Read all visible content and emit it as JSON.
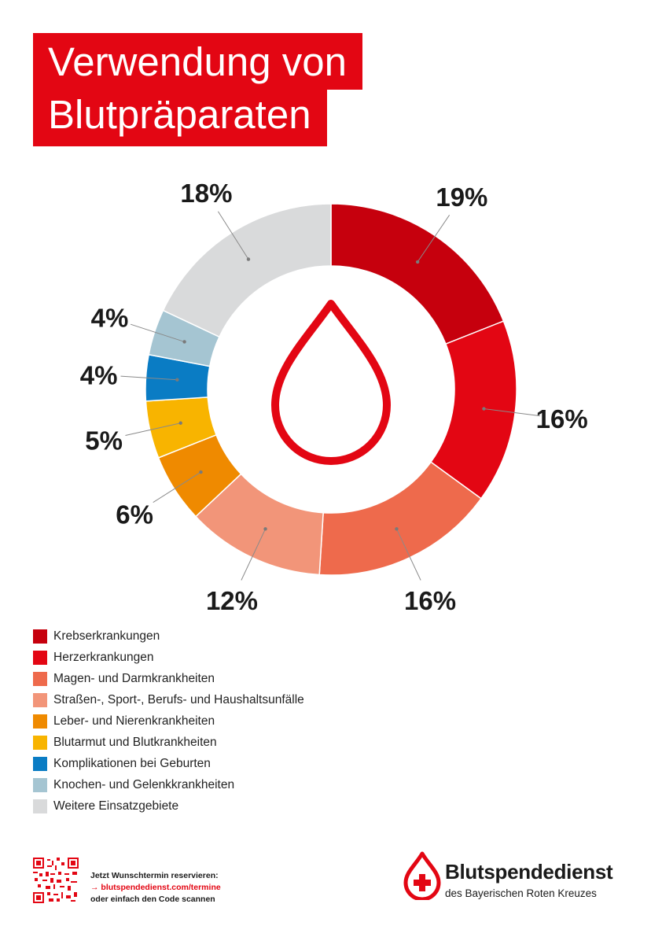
{
  "title": {
    "line1": "Verwendung von",
    "line2": "Blutpräparaten"
  },
  "colors": {
    "brand_red": "#e30613"
  },
  "chart_data": {
    "type": "pie",
    "variant": "donut",
    "center_icon": "blood-drop-icon",
    "slices": [
      {
        "label": "Krebserkrankungen",
        "value": 19,
        "display": "19%",
        "color": "#c6000d"
      },
      {
        "label": "Herzerkrankungen",
        "value": 16,
        "display": "16%",
        "color": "#e30613"
      },
      {
        "label": "Magen- und Darmkrankheiten",
        "value": 16,
        "display": "16%",
        "color": "#ee6a4c"
      },
      {
        "label": "Straßen-, Sport-, Berufs- und Haushaltsunfälle",
        "value": 12,
        "display": "12%",
        "color": "#f29579"
      },
      {
        "label": "Leber- und Nierenkrankheiten",
        "value": 6,
        "display": "6%",
        "color": "#ef8a00"
      },
      {
        "label": "Blutarmut und Blutkrankheiten",
        "value": 5,
        "display": "5%",
        "color": "#f8b400"
      },
      {
        "label": "Komplikationen bei Geburten",
        "value": 4,
        "display": "4%",
        "color": "#0a7cc4"
      },
      {
        "label": "Knochen- und Gelenkkrankheiten",
        "value": 4,
        "display": "4%",
        "color": "#a5c5d2"
      },
      {
        "label": "Weitere Einsatzgebiete",
        "value": 18,
        "display": "18%",
        "color": "#d9dadb"
      }
    ]
  },
  "footer": {
    "line1": "Jetzt Wunschtermin reservieren:",
    "link": "→ blutspendedienst.com/termine",
    "line3": "oder einfach den Code scannen",
    "logo_name": "Blutspendedienst",
    "logo_sub": "des Bayerischen Roten Kreuzes"
  }
}
